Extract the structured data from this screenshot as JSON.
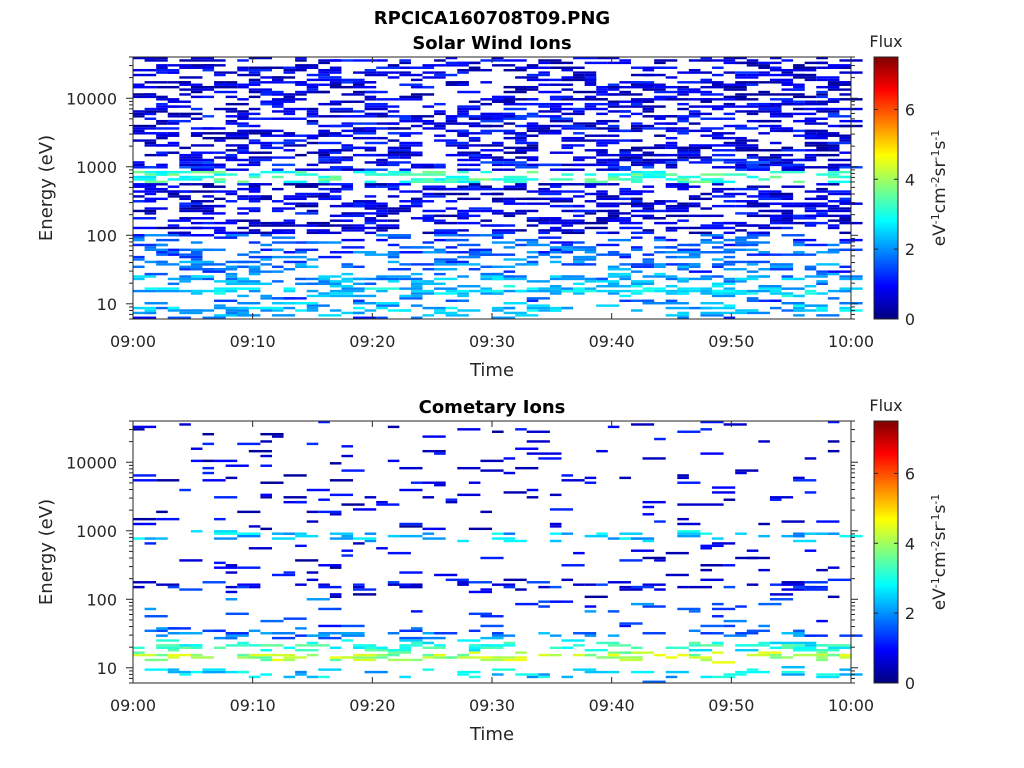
{
  "figure": {
    "title": "RPCICA160708T09.PNG"
  },
  "chart_data": [
    {
      "type": "heatmap",
      "title": "Solar Wind Ions",
      "xlabel": "Time",
      "ylabel": "Energy (eV)",
      "x_ticks": [
        "09:00",
        "09:10",
        "09:20",
        "09:30",
        "09:40",
        "09:50",
        "10:00"
      ],
      "x_range": [
        "09:00",
        "10:00"
      ],
      "y_scale": "log",
      "y_ticks": [
        10,
        100,
        1000,
        10000
      ],
      "y_tick_labels": [
        "10",
        "100",
        "1000",
        "10000"
      ],
      "ylim": [
        6,
        40000
      ],
      "colorbar": {
        "title": "Flux",
        "label": "eV-1cm-2sr-1s-1",
        "range": [
          0,
          7.5
        ],
        "ticks": [
          0,
          2,
          4,
          6
        ],
        "tick_labels": [
          "0",
          "2",
          "4",
          "6"
        ],
        "colormap": "jet"
      },
      "description_profile": "dense",
      "features": [
        {
          "energy": 8,
          "flux": 2.3,
          "occupancy": 0.55
        },
        {
          "energy": 15,
          "flux": 2.5,
          "occupancy": 0.6
        },
        {
          "energy": 22,
          "flux": 2.1,
          "occupancy": 0.5
        },
        {
          "energy": 35,
          "flux": 1.8,
          "occupancy": 0.5
        },
        {
          "energy": 55,
          "flux": 1.6,
          "occupancy": 0.45
        },
        {
          "energy": 700,
          "flux": 3.2,
          "occupancy": 0.35
        },
        {
          "energy": 1000,
          "flux": 1.0,
          "occupancy": 0.6
        },
        {
          "energy": 5000,
          "flux": 0.8,
          "occupancy": 0.55
        }
      ]
    },
    {
      "type": "heatmap",
      "title": "Cometary Ions",
      "xlabel": "Time",
      "ylabel": "Energy (eV)",
      "x_ticks": [
        "09:00",
        "09:10",
        "09:20",
        "09:30",
        "09:40",
        "09:50",
        "10:00"
      ],
      "x_range": [
        "09:00",
        "10:00"
      ],
      "y_scale": "log",
      "y_ticks": [
        10,
        100,
        1000,
        10000
      ],
      "y_tick_labels": [
        "10",
        "100",
        "1000",
        "10000"
      ],
      "ylim": [
        6,
        40000
      ],
      "colorbar": {
        "title": "Flux",
        "label": "eV-1cm-2sr-1s-1",
        "range": [
          0,
          7.5
        ],
        "ticks": [
          0,
          2,
          4,
          6
        ],
        "tick_labels": [
          "0",
          "2",
          "4",
          "6"
        ],
        "colormap": "jet"
      },
      "description_profile": "sparse",
      "features": [
        {
          "energy": 8,
          "flux": 2.5,
          "occupancy": 0.3
        },
        {
          "energy": 14,
          "flux": 4.0,
          "occupancy": 0.55
        },
        {
          "energy": 20,
          "flux": 3.0,
          "occupancy": 0.45
        },
        {
          "energy": 30,
          "flux": 1.8,
          "occupancy": 0.35
        },
        {
          "energy": 800,
          "flux": 2.4,
          "occupancy": 0.3
        },
        {
          "energy": 150,
          "flux": 1.0,
          "occupancy": 0.3
        },
        {
          "energy": 3000,
          "flux": 0.7,
          "occupancy": 0.12
        }
      ]
    }
  ]
}
